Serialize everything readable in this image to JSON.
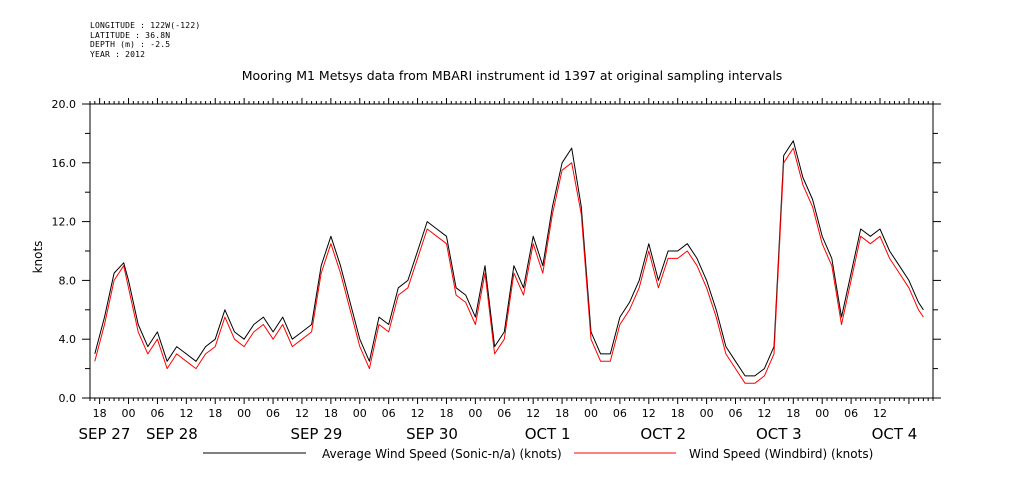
{
  "header": {
    "longitude": "LONGITUDE : 122W(-122)",
    "latitude": "LATITUDE : 36.8N",
    "depth": "DEPTH (m) : -2.5",
    "year": "YEAR : 2012"
  },
  "chart_data": {
    "type": "line",
    "title": "Mooring M1 Metsys data from MBARI instrument id 1397 at original sampling intervals",
    "ylabel": "knots",
    "xlabel": "",
    "ylim": [
      0,
      20
    ],
    "yticks": [
      "0.0",
      "4.0",
      "8.0",
      "12.0",
      "16.0",
      "20.0"
    ],
    "xlim_hours": [
      -8,
      167
    ],
    "hour_ticks": [
      {
        "h": -6,
        "label": "18"
      },
      {
        "h": 0,
        "label": "00"
      },
      {
        "h": 6,
        "label": "06"
      },
      {
        "h": 12,
        "label": "12"
      },
      {
        "h": 18,
        "label": "18"
      },
      {
        "h": 24,
        "label": "00"
      },
      {
        "h": 30,
        "label": "06"
      },
      {
        "h": 36,
        "label": "12"
      },
      {
        "h": 42,
        "label": "18"
      },
      {
        "h": 48,
        "label": "00"
      },
      {
        "h": 54,
        "label": "06"
      },
      {
        "h": 60,
        "label": "12"
      },
      {
        "h": 66,
        "label": "18"
      },
      {
        "h": 72,
        "label": "00"
      },
      {
        "h": 78,
        "label": "06"
      },
      {
        "h": 84,
        "label": "12"
      },
      {
        "h": 90,
        "label": "18"
      },
      {
        "h": 96,
        "label": "00"
      },
      {
        "h": 102,
        "label": "06"
      },
      {
        "h": 108,
        "label": "12"
      },
      {
        "h": 114,
        "label": "18"
      },
      {
        "h": 120,
        "label": "00"
      },
      {
        "h": 126,
        "label": "06"
      },
      {
        "h": 132,
        "label": "12"
      },
      {
        "h": 138,
        "label": "18"
      },
      {
        "h": 144,
        "label": "00"
      },
      {
        "h": 150,
        "label": "06"
      },
      {
        "h": 156,
        "label": "12"
      }
    ],
    "date_labels": [
      {
        "h": -5,
        "label": "SEP 27"
      },
      {
        "h": 9,
        "label": "SEP 28"
      },
      {
        "h": 39,
        "label": "SEP 29"
      },
      {
        "h": 63,
        "label": "SEP 30"
      },
      {
        "h": 87,
        "label": "OCT  1"
      },
      {
        "h": 111,
        "label": "OCT  2"
      },
      {
        "h": 135,
        "label": "OCT  3"
      },
      {
        "h": 159,
        "label": "OCT  4"
      }
    ],
    "hours": [
      -7,
      -5,
      -3,
      -1,
      0,
      2,
      4,
      6,
      8,
      10,
      12,
      14,
      16,
      18,
      20,
      22,
      24,
      26,
      28,
      30,
      32,
      34,
      36,
      38,
      40,
      42,
      44,
      46,
      48,
      50,
      52,
      54,
      56,
      58,
      60,
      62,
      64,
      66,
      68,
      70,
      72,
      74,
      76,
      78,
      80,
      82,
      84,
      86,
      88,
      90,
      92,
      94,
      96,
      98,
      100,
      102,
      104,
      106,
      108,
      110,
      112,
      114,
      116,
      118,
      120,
      122,
      124,
      126,
      128,
      130,
      132,
      134,
      136,
      138,
      140,
      142,
      144,
      146,
      148,
      150,
      152,
      154,
      156,
      158,
      160,
      162,
      164,
      165
    ],
    "series": [
      {
        "name": "Average Wind Speed (Sonic-n/a) (knots)",
        "color": "#000000",
        "values": [
          3.0,
          5.5,
          8.5,
          9.2,
          8.0,
          5.0,
          3.5,
          4.5,
          2.5,
          3.5,
          3.0,
          2.5,
          3.5,
          4.0,
          6.0,
          4.5,
          4.0,
          5.0,
          5.5,
          4.5,
          5.5,
          4.0,
          4.5,
          5.0,
          9.0,
          11.0,
          9.0,
          6.5,
          4.0,
          2.5,
          5.5,
          5.0,
          7.5,
          8.0,
          10.0,
          12.0,
          11.5,
          11.0,
          7.5,
          7.0,
          5.5,
          9.0,
          3.5,
          4.5,
          9.0,
          7.5,
          11.0,
          9.0,
          13.0,
          16.0,
          17.0,
          13.0,
          4.5,
          3.0,
          3.0,
          5.5,
          6.5,
          8.0,
          10.5,
          8.0,
          10.0,
          10.0,
          10.5,
          9.5,
          8.0,
          6.0,
          3.5,
          2.5,
          1.5,
          1.5,
          2.0,
          3.5,
          16.5,
          17.5,
          15.0,
          13.5,
          11.0,
          9.5,
          5.5,
          8.5,
          11.5,
          11.0,
          11.5,
          10.0,
          9.0,
          8.0,
          6.5,
          6.0
        ]
      },
      {
        "name": "Wind Speed (Windbird) (knots)",
        "color": "#ff0000",
        "values": [
          2.5,
          5.0,
          8.0,
          9.0,
          7.5,
          4.5,
          3.0,
          4.0,
          2.0,
          3.0,
          2.5,
          2.0,
          3.0,
          3.5,
          5.5,
          4.0,
          3.5,
          4.5,
          5.0,
          4.0,
          5.0,
          3.5,
          4.0,
          4.5,
          8.5,
          10.5,
          8.5,
          6.0,
          3.5,
          2.0,
          5.0,
          4.5,
          7.0,
          7.5,
          9.5,
          11.5,
          11.0,
          10.5,
          7.0,
          6.5,
          5.0,
          8.5,
          3.0,
          4.0,
          8.5,
          7.0,
          10.5,
          8.5,
          12.5,
          15.5,
          16.0,
          12.5,
          4.0,
          2.5,
          2.5,
          5.0,
          6.0,
          7.5,
          10.0,
          7.5,
          9.5,
          9.5,
          10.0,
          9.0,
          7.5,
          5.5,
          3.0,
          2.0,
          1.0,
          1.0,
          1.5,
          3.0,
          16.0,
          17.0,
          14.5,
          13.0,
          10.5,
          9.0,
          5.0,
          8.0,
          11.0,
          10.5,
          11.0,
          9.5,
          8.5,
          7.5,
          6.0,
          5.5
        ]
      }
    ],
    "grid": false,
    "legend_position": "bottom"
  }
}
